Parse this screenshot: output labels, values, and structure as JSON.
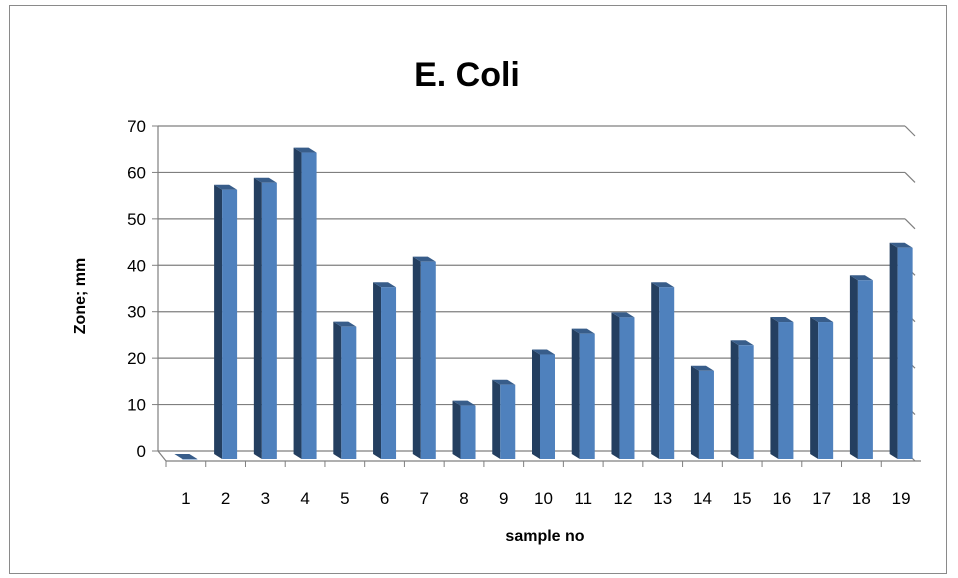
{
  "chart_data": {
    "type": "bar",
    "title": "E. Coli",
    "xlabel": "sample no",
    "ylabel": "Zone; mm",
    "categories": [
      "1",
      "2",
      "3",
      "4",
      "5",
      "6",
      "7",
      "8",
      "9",
      "10",
      "11",
      "12",
      "13",
      "14",
      "15",
      "16",
      "17",
      "18",
      "19"
    ],
    "values": [
      0,
      58,
      59.5,
      66,
      28.5,
      37,
      42.5,
      11.5,
      16,
      22.5,
      27,
      30.5,
      37,
      19,
      24.5,
      29.5,
      29.5,
      38.5,
      45.5
    ],
    "ylim": [
      0,
      70
    ],
    "yticks": [
      "0",
      "10",
      "20",
      "30",
      "40",
      "50",
      "60",
      "70"
    ],
    "grid": true,
    "style": "3d-column",
    "colors": {
      "front": "#4f81bd",
      "side": "#243f60",
      "top": "#385d8a"
    }
  }
}
